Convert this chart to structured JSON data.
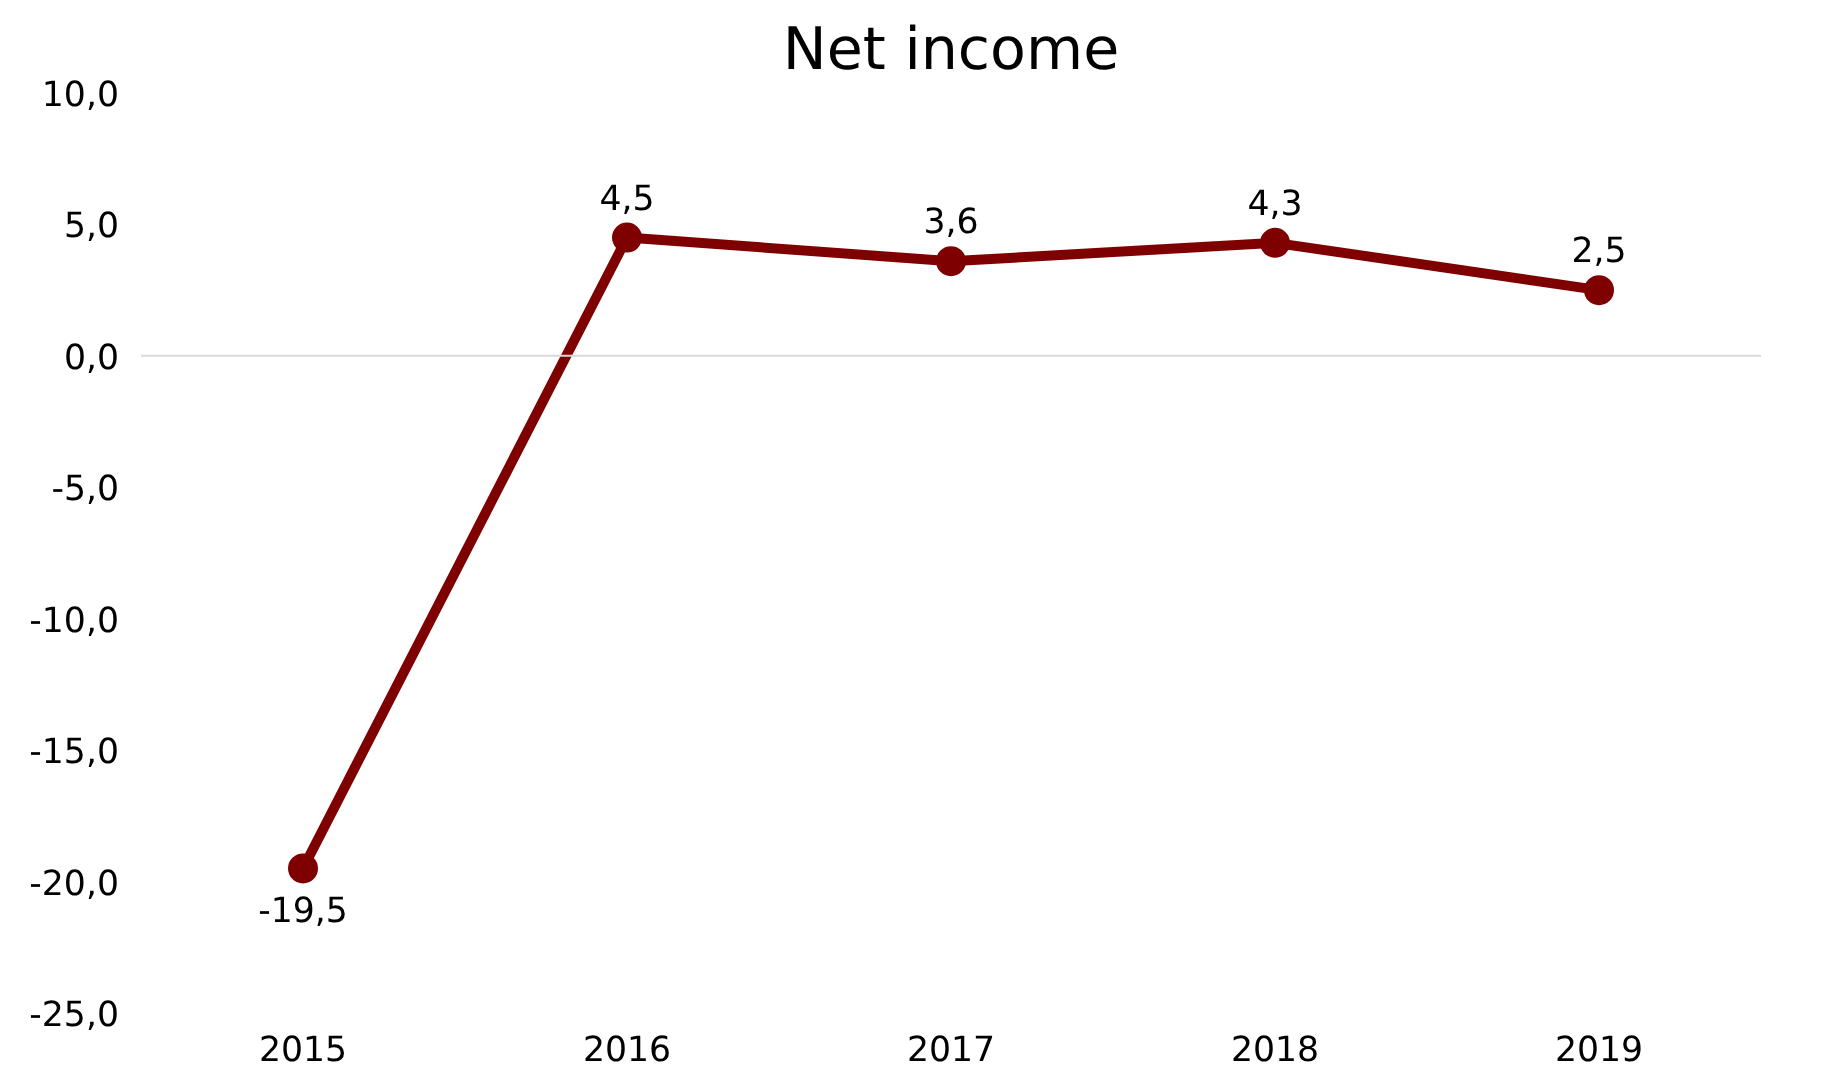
{
  "chart_data": {
    "type": "line",
    "title": "Net income",
    "categories": [
      "2015",
      "2016",
      "2017",
      "2018",
      "2019"
    ],
    "values": [
      -19.5,
      4.5,
      3.6,
      4.3,
      2.5
    ],
    "value_labels": [
      "-19,5",
      "4,5",
      "3,6",
      "4,3",
      "2,5"
    ],
    "color": "#7f0000",
    "marker": "circle",
    "line_style": "solid",
    "ref_lines": [
      {
        "axis": "y",
        "value": 0,
        "color": "#d9d9d9"
      }
    ],
    "ylim": [
      -25,
      10
    ],
    "yticks": [
      {
        "value": 10,
        "label": "10,0"
      },
      {
        "value": 5,
        "label": "5,0"
      },
      {
        "value": 0,
        "label": "0,0"
      },
      {
        "value": -5,
        "label": "-5,0"
      },
      {
        "value": -10,
        "label": "-10,0"
      },
      {
        "value": -15,
        "label": "-15,0"
      },
      {
        "value": -20,
        "label": "-20,0"
      },
      {
        "value": -25,
        "label": "-25,0"
      }
    ]
  }
}
